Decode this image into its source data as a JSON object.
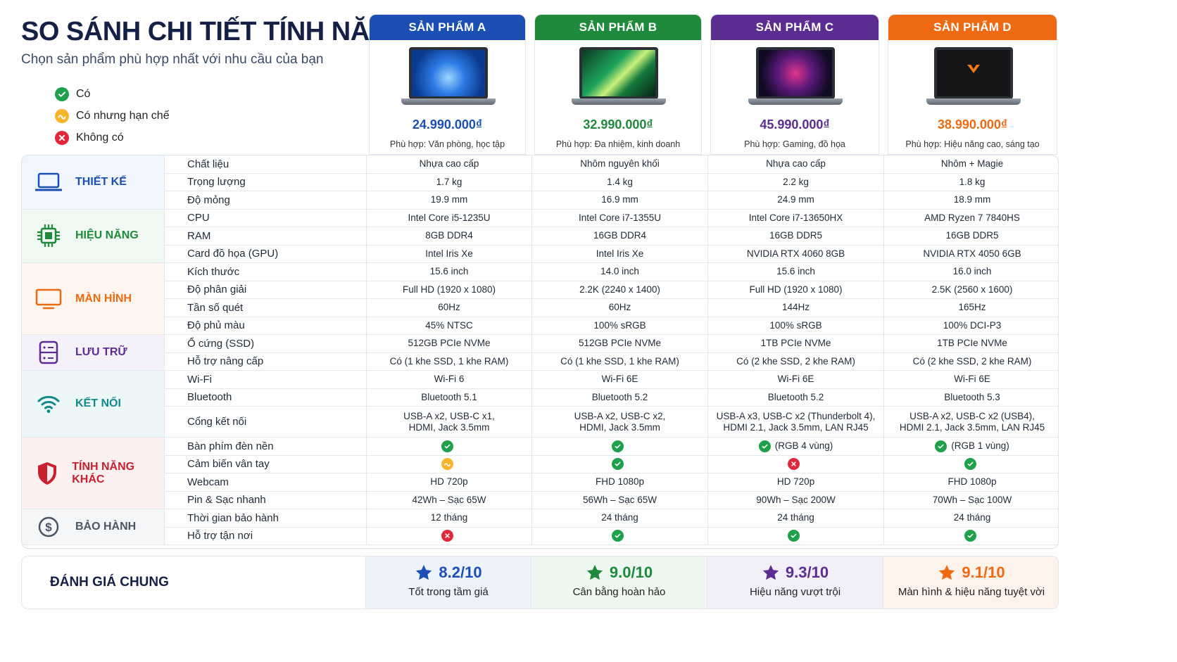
{
  "header": {
    "title": "SO SÁNH CHI TIẾT TÍNH NĂNG",
    "subtitle": "Chọn sản phẩm phù hợp nhất với nhu cầu của bạn"
  },
  "legend": {
    "yes": "Có",
    "partial": "Có nhưng hạn chế",
    "no": "Không có"
  },
  "colors": {
    "yes": "#1fa04a",
    "partial": "#f7b52c",
    "no": "#e0283a"
  },
  "products": [
    {
      "name": "SẢN PHẨM A",
      "price": "24.990.000₫",
      "fit": "Phù hợp: Văn phòng, học tập",
      "color": "#1b4fb3",
      "screen": "windows-wallpaper"
    },
    {
      "name": "SẢN PHẨM B",
      "price": "32.990.000₫",
      "fit": "Phù hợp: Đa nhiệm, kinh doanh",
      "color": "#1f8a3c",
      "screen": "green-wave-wallpaper"
    },
    {
      "name": "SẢN PHẨM C",
      "price": "45.990.000₫",
      "fit": "Phù hợp: Gaming, đồ họa",
      "color": "#5b2d91",
      "screen": "gaming-logo-wallpaper"
    },
    {
      "name": "SẢN PHẨM D",
      "price": "38.990.000₫",
      "fit": "Phù hợp: Hiệu năng cao, sáng tạo",
      "color": "#ee6a12",
      "screen": "dark-logo-wallpaper"
    }
  ],
  "groups": [
    {
      "label": "THIẾT KẾ",
      "icon": "laptop-icon",
      "color": "#1b4fb3",
      "bg": "#f1f5fd",
      "rows": [
        {
          "label": "Chất liệu",
          "values": [
            "Nhựa cao cấp",
            "Nhôm nguyên khối",
            "Nhựa cao cấp",
            "Nhôm + Magie"
          ]
        },
        {
          "label": "Trọng lượng",
          "values": [
            "1.7 kg",
            "1.4 kg",
            "2.2 kg",
            "1.8 kg"
          ]
        },
        {
          "label": "Độ mỏng",
          "values": [
            "19.9 mm",
            "16.9 mm",
            "24.9 mm",
            "18.9 mm"
          ]
        }
      ]
    },
    {
      "label": "HIỆU NĂNG",
      "icon": "cpu-icon",
      "color": "#1f8a3c",
      "bg": "#f0f8f2",
      "rows": [
        {
          "label": "CPU",
          "values": [
            "Intel Core i5-1235U",
            "Intel Core i7-1355U",
            "Intel Core i7-13650HX",
            "AMD Ryzen 7 7840HS"
          ]
        },
        {
          "label": "RAM",
          "values": [
            "8GB DDR4",
            "16GB DDR4",
            "16GB DDR5",
            "16GB DDR5"
          ]
        },
        {
          "label": "Card đồ họa (GPU)",
          "values": [
            "Intel Iris Xe",
            "Intel Iris Xe",
            "NVIDIA RTX 4060 8GB",
            "NVIDIA RTX 4050 6GB"
          ]
        }
      ]
    },
    {
      "label": "MÀN HÌNH",
      "icon": "monitor-icon",
      "color": "#ee6a12",
      "bg": "#fdf5ee",
      "rows": [
        {
          "label": "Kích thước",
          "values": [
            "15.6 inch",
            "14.0 inch",
            "15.6 inch",
            "16.0 inch"
          ]
        },
        {
          "label": "Độ phân giải",
          "values": [
            "Full HD (1920 x 1080)",
            "2.2K (2240 x 1400)",
            "Full HD (1920 x 1080)",
            "2.5K (2560 x 1600)"
          ]
        },
        {
          "label": "Tần số quét",
          "values": [
            "60Hz",
            "60Hz",
            "144Hz",
            "165Hz"
          ]
        },
        {
          "label": "Độ phủ màu",
          "values": [
            "45% NTSC",
            "100% sRGB",
            "100% sRGB",
            "100% DCI-P3"
          ]
        }
      ]
    },
    {
      "label": "LƯU TRỮ",
      "icon": "storage-icon",
      "color": "#5b2d91",
      "bg": "#f5f1fa",
      "rows": [
        {
          "label": "Ổ cứng (SSD)",
          "values": [
            "512GB PCIe NVMe",
            "512GB PCIe NVMe",
            "1TB PCIe NVMe",
            "1TB PCIe NVMe"
          ]
        },
        {
          "label": "Hỗ trợ nâng cấp",
          "values": [
            "Có (1 khe SSD, 1 khe RAM)",
            "Có (1 khe SSD, 1 khe RAM)",
            "Có (2 khe SSD, 2 khe RAM)",
            "Có (2 khe SSD, 2 khe RAM)"
          ]
        }
      ]
    },
    {
      "label": "KẾT NỐI",
      "icon": "wifi-icon",
      "color": "#138a8a",
      "bg": "#eef7f7",
      "rows": [
        {
          "label": "Wi-Fi",
          "values": [
            "Wi-Fi 6",
            "Wi-Fi 6E",
            "Wi-Fi 6E",
            "Wi-Fi 6E"
          ]
        },
        {
          "label": "Bluetooth",
          "values": [
            "Bluetooth 5.1",
            "Bluetooth 5.2",
            "Bluetooth 5.2",
            "Bluetooth 5.3"
          ]
        },
        {
          "label": "Cổng kết nối",
          "values": [
            "USB-A x2, USB-C x1,\nHDMI, Jack 3.5mm",
            "USB-A x2, USB-C x2,\nHDMI, Jack 3.5mm",
            "USB-A x3, USB-C x2 (Thunderbolt 4),\nHDMI 2.1, Jack 3.5mm, LAN RJ45",
            "USB-A x2, USB-C x2 (USB4),\nHDMI 2.1, Jack 3.5mm, LAN RJ45"
          ]
        }
      ]
    },
    {
      "label": "TÍNH NĂNG KHÁC",
      "icon": "shield-icon",
      "color": "#c8202f",
      "bg": "#fcf0f1",
      "rows": [
        {
          "label": "Bàn phím đèn nền",
          "values": [
            {
              "status": "yes"
            },
            {
              "status": "yes"
            },
            {
              "status": "yes",
              "text": "(RGB 4 vùng)"
            },
            {
              "status": "yes",
              "text": "(RGB 1 vùng)"
            }
          ]
        },
        {
          "label": "Cảm biến vân tay",
          "values": [
            {
              "status": "partial"
            },
            {
              "status": "yes"
            },
            {
              "status": "no"
            },
            {
              "status": "yes"
            }
          ]
        },
        {
          "label": "Webcam",
          "values": [
            "HD 720p",
            "FHD 1080p",
            "HD 720p",
            "FHD 1080p"
          ]
        },
        {
          "label": "Pin & Sạc nhanh",
          "values": [
            "42Wh – Sạc 65W",
            "56Wh – Sạc 65W",
            "90Wh – Sạc 200W",
            "70Wh – Sạc 100W"
          ]
        }
      ]
    },
    {
      "label": "BẢO HÀNH",
      "icon": "dollar-coin-icon",
      "color": "#4b5563",
      "bg": "#f5f6f8",
      "rows": [
        {
          "label": "Thời gian bảo hành",
          "values": [
            "12 tháng",
            "24 tháng",
            "24 tháng",
            "24 tháng"
          ]
        },
        {
          "label": "Hỗ trợ tận nơi",
          "values": [
            {
              "status": "no"
            },
            {
              "status": "yes"
            },
            {
              "status": "yes"
            },
            {
              "status": "yes"
            }
          ]
        }
      ]
    }
  ],
  "summary": {
    "label": "ĐÁNH GIÁ CHUNG",
    "items": [
      {
        "score": "8.2/10",
        "note": "Tốt trong tầm giá",
        "color": "#1b4fb3",
        "bg": "#eef3fb"
      },
      {
        "score": "9.0/10",
        "note": "Cân bằng hoàn hảo",
        "color": "#1f8a3c",
        "bg": "#eef7f0"
      },
      {
        "score": "9.3/10",
        "note": "Hiệu năng vượt trội",
        "color": "#5b2d91",
        "bg": "#f3eff9"
      },
      {
        "score": "9.1/10",
        "note": "Màn hình & hiệu năng tuyệt vời",
        "color": "#ee6a12",
        "bg": "#fdf3ea"
      }
    ]
  }
}
